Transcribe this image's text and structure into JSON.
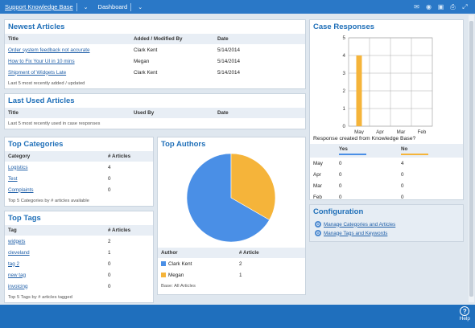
{
  "topbar": {
    "crumb1": "Support Knowledge Base",
    "crumb2": "Dashboard",
    "icons": [
      "comment-icon",
      "camera-icon",
      "lock-icon",
      "print-icon",
      "expand-icon"
    ]
  },
  "newest": {
    "title": "Newest Articles",
    "headers": [
      "Title",
      "Added / Modified By",
      "Date"
    ],
    "rows": [
      {
        "title": "Order system feedback not accurate",
        "by": "Clark Kent",
        "date": "5/14/2014"
      },
      {
        "title": "How to Fix Your UI in 10 mins",
        "by": "Megan",
        "date": "5/14/2014"
      },
      {
        "title": "Shipment of Widgets Late",
        "by": "Clark Kent",
        "date": "5/14/2014"
      }
    ],
    "footer": "Last 5 most recently added / updated"
  },
  "lastused": {
    "title": "Last Used Articles",
    "headers": [
      "Title",
      "Used By",
      "Date"
    ],
    "footer": "Last 5 most recently used in case responses"
  },
  "categories": {
    "title": "Top Categories",
    "headers": [
      "Category",
      "# Articles"
    ],
    "rows": [
      {
        "name": "Logistics",
        "count": "4"
      },
      {
        "name": "Test",
        "count": "0"
      },
      {
        "name": "Complaints",
        "count": "0"
      }
    ],
    "footer": "Top 5 Categories by # articles available"
  },
  "tags": {
    "title": "Top Tags",
    "headers": [
      "Tag",
      "# Articles"
    ],
    "rows": [
      {
        "name": "widgets",
        "count": "2"
      },
      {
        "name": "cleveland",
        "count": "1"
      },
      {
        "name": "tag 2",
        "count": "0"
      },
      {
        "name": "new tag",
        "count": "0"
      },
      {
        "name": "invoicing",
        "count": "0"
      }
    ],
    "footer": "Top 5 Tags by # articles tagged"
  },
  "authors": {
    "title": "Top Authors",
    "headers": [
      "Author",
      "# Article"
    ],
    "rows": [
      {
        "name": "Clark Kent",
        "count": "2",
        "color": "#4a8fe6"
      },
      {
        "name": "Megan",
        "count": "1",
        "color": "#f5b43a"
      }
    ],
    "footer": "Base: All Articles"
  },
  "responses": {
    "title": "Case Responses",
    "question": "Response created from Knowledge Base?",
    "headers": [
      "",
      "Yes",
      "No"
    ],
    "yes_color": "#4a8fe6",
    "no_color": "#f5b43a",
    "rows": [
      {
        "month": "May",
        "yes": "0",
        "no": "4"
      },
      {
        "month": "Apr",
        "yes": "0",
        "no": "0"
      },
      {
        "month": "Mar",
        "yes": "0",
        "no": "0"
      },
      {
        "month": "Feb",
        "yes": "0",
        "no": "0"
      }
    ]
  },
  "config": {
    "title": "Configuration",
    "items": [
      "Manage Categories and Articles",
      "Manage Tags and Keywords"
    ]
  },
  "help": {
    "label": "Help"
  },
  "chart_data": [
    {
      "type": "pie",
      "labels": [
        "Clark Kent",
        "Megan"
      ],
      "values": [
        2,
        1
      ],
      "colors": [
        "#4a8fe6",
        "#f5b43a"
      ]
    },
    {
      "type": "bar",
      "categories": [
        "May",
        "Apr",
        "Mar",
        "Feb"
      ],
      "series": [
        {
          "values": [
            0,
            0,
            0,
            0
          ],
          "color": "#4a8fe6"
        },
        {
          "values": [
            4,
            0,
            0,
            0
          ],
          "color": "#f5b43a"
        }
      ],
      "yticks": [
        "0",
        "1",
        "2",
        "3",
        "4",
        "5"
      ],
      "ylim": [
        0,
        5
      ],
      "grid": true
    }
  ]
}
